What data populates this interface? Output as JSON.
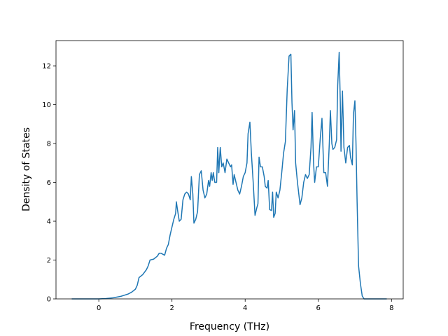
{
  "chart_data": {
    "type": "line",
    "xlabel": "Frequency (THz)",
    "ylabel": "Density of States",
    "color": "#1f77b4",
    "xlim": [
      -1.17,
      8.32
    ],
    "ylim": [
      0,
      13.3
    ],
    "xticks": [
      0,
      2,
      4,
      6,
      8
    ],
    "yticks": [
      0,
      2,
      4,
      6,
      8,
      10,
      12
    ],
    "x": [
      -0.74,
      0,
      0.2,
      0.4,
      0.6,
      0.8,
      0.9,
      1.0,
      1.05,
      1.1,
      1.2,
      1.3,
      1.35,
      1.4,
      1.5,
      1.6,
      1.65,
      1.7,
      1.8,
      1.85,
      1.9,
      1.95,
      2.0,
      2.05,
      2.1,
      2.12,
      2.15,
      2.2,
      2.25,
      2.3,
      2.35,
      2.4,
      2.45,
      2.5,
      2.53,
      2.57,
      2.6,
      2.65,
      2.7,
      2.75,
      2.8,
      2.85,
      2.9,
      2.95,
      3.0,
      3.03,
      3.07,
      3.1,
      3.13,
      3.17,
      3.22,
      3.25,
      3.28,
      3.32,
      3.36,
      3.4,
      3.45,
      3.5,
      3.55,
      3.6,
      3.63,
      3.67,
      3.7,
      3.75,
      3.8,
      3.85,
      3.9,
      3.95,
      4.0,
      4.05,
      4.08,
      4.13,
      4.17,
      4.22,
      4.27,
      4.32,
      4.35,
      4.38,
      4.42,
      4.47,
      4.52,
      4.55,
      4.6,
      4.63,
      4.67,
      4.72,
      4.75,
      4.78,
      4.82,
      4.85,
      4.9,
      4.95,
      5.0,
      5.05,
      5.1,
      5.15,
      5.2,
      5.25,
      5.28,
      5.31,
      5.35,
      5.38,
      5.43,
      5.5,
      5.55,
      5.6,
      5.65,
      5.7,
      5.75,
      5.8,
      5.83,
      5.87,
      5.9,
      5.95,
      6.0,
      6.05,
      6.1,
      6.15,
      6.2,
      6.25,
      6.3,
      6.33,
      6.37,
      6.4,
      6.45,
      6.5,
      6.53,
      6.57,
      6.6,
      6.62,
      6.66,
      6.7,
      6.75,
      6.8,
      6.85,
      6.88,
      6.93,
      6.96,
      7.0,
      7.03,
      7.06,
      7.1,
      7.15,
      7.2,
      7.25,
      7.87
    ],
    "values": [
      0,
      0,
      0.02,
      0.06,
      0.13,
      0.25,
      0.35,
      0.5,
      0.7,
      1.1,
      1.25,
      1.5,
      1.7,
      2.0,
      2.05,
      2.2,
      2.35,
      2.35,
      2.25,
      2.6,
      2.8,
      3.3,
      3.7,
      4.1,
      4.4,
      5.0,
      4.6,
      4.0,
      4.1,
      5.1,
      5.4,
      5.5,
      5.4,
      5.1,
      6.3,
      5.4,
      3.9,
      4.1,
      4.5,
      6.4,
      6.6,
      5.6,
      5.2,
      5.4,
      6.1,
      5.8,
      6.5,
      6.1,
      6.5,
      6.0,
      6.0,
      7.8,
      6.5,
      7.8,
      6.8,
      7.0,
      6.5,
      7.2,
      7.0,
      6.8,
      6.9,
      5.9,
      6.4,
      6.0,
      5.6,
      5.4,
      5.8,
      6.3,
      6.5,
      7.0,
      8.5,
      9.1,
      7.5,
      6.0,
      4.3,
      4.7,
      4.9,
      7.3,
      6.8,
      6.8,
      6.3,
      5.8,
      5.7,
      6.1,
      4.6,
      4.55,
      5.5,
      4.2,
      4.4,
      5.5,
      5.2,
      5.6,
      6.5,
      7.5,
      8.1,
      10.8,
      12.5,
      12.6,
      10.1,
      8.7,
      9.7,
      7.0,
      6.0,
      4.85,
      5.2,
      6.0,
      6.4,
      6.2,
      6.4,
      7.8,
      9.6,
      7.0,
      6.0,
      6.8,
      6.8,
      8.2,
      9.3,
      6.5,
      6.5,
      5.8,
      8.0,
      9.7,
      8.0,
      7.7,
      7.8,
      8.2,
      11.0,
      12.7,
      10.2,
      7.6,
      10.7,
      7.8,
      7.0,
      7.8,
      7.9,
      7.3,
      6.9,
      9.5,
      10.2,
      8.0,
      5.0,
      1.7,
      0.8,
      0.15,
      0,
      0
    ]
  }
}
